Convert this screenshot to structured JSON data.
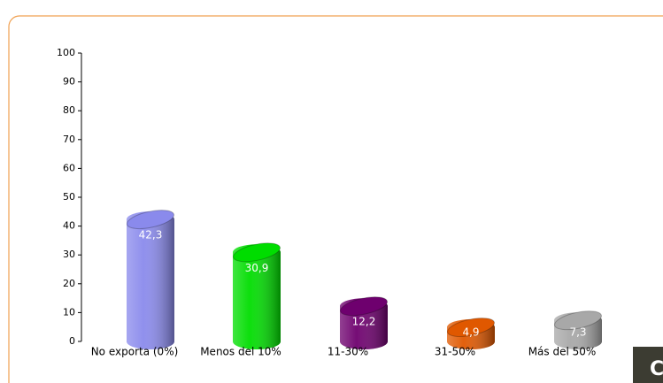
{
  "chart_data": {
    "type": "bar",
    "categories": [
      "No exporta (0%)",
      "Menos del 10%",
      "11-30%",
      "31-50%",
      "Más del 50%"
    ],
    "values": [
      42.3,
      30.9,
      12.2,
      4.9,
      7.3
    ],
    "value_labels": [
      "42,3",
      "30,9",
      "12,2",
      "4,9",
      "7,3"
    ],
    "colors": [
      "#8a8aec",
      "#00dd00",
      "#6e006e",
      "#e05800",
      "#a8a8a8"
    ],
    "ylim": [
      0,
      100
    ],
    "yticks": [
      0,
      10,
      20,
      30,
      40,
      50,
      60,
      70,
      80,
      90,
      100
    ]
  },
  "badge": "C"
}
